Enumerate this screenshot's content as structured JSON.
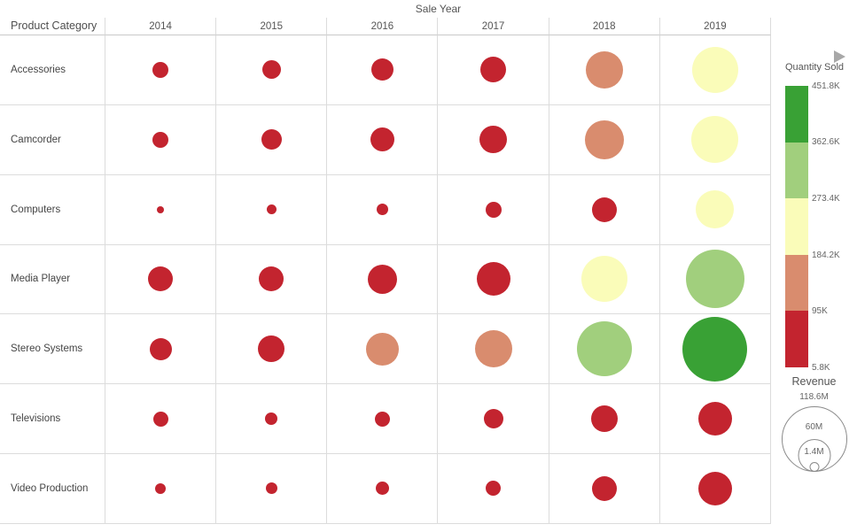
{
  "palette": {
    "red": "#c3242f",
    "salmon": "#d98c6e",
    "yellow": "#fafcb9",
    "light_green": "#a1cf7d",
    "green": "#39a135"
  },
  "color_bands": {
    "red": "5.8K-95K",
    "salmon": "95K-184.2K",
    "yellow": "184.2K-273.4K",
    "light_green": "273.4K-362.6K",
    "green": "362.6K-451.8K"
  },
  "chart_data": {
    "type": "bubble",
    "title": "Sale Year",
    "row_header": "Product Category",
    "size_encoding": "Revenue",
    "color_encoding": "Quantity Sold",
    "columns": [
      "2014",
      "2015",
      "2016",
      "2017",
      "2018",
      "2019"
    ],
    "rows": [
      {
        "category": "Accessories",
        "bubbles": [
          {
            "d": 18,
            "c": "red",
            "revenue_est_m": 7.2
          },
          {
            "d": 21,
            "c": "red",
            "revenue_est_m": 9.8
          },
          {
            "d": 25,
            "c": "red",
            "revenue_est_m": 13.9
          },
          {
            "d": 29,
            "c": "red",
            "revenue_est_m": 18.7
          },
          {
            "d": 42,
            "c": "salmon",
            "revenue_est_m": 39.3
          },
          {
            "d": 52,
            "c": "yellow",
            "revenue_est_m": 60.2
          }
        ]
      },
      {
        "category": "Camcorder",
        "bubbles": [
          {
            "d": 18,
            "c": "red",
            "revenue_est_m": 7.2
          },
          {
            "d": 23,
            "c": "red",
            "revenue_est_m": 11.8
          },
          {
            "d": 27,
            "c": "red",
            "revenue_est_m": 16.2
          },
          {
            "d": 31,
            "c": "red",
            "revenue_est_m": 21.4
          },
          {
            "d": 44,
            "c": "salmon",
            "revenue_est_m": 43.1
          },
          {
            "d": 53,
            "c": "yellow",
            "revenue_est_m": 62.5
          }
        ]
      },
      {
        "category": "Computers",
        "bubbles": [
          {
            "d": 8,
            "c": "red",
            "revenue_est_m": 1.4
          },
          {
            "d": 11,
            "c": "red",
            "revenue_est_m": 2.7
          },
          {
            "d": 13,
            "c": "red",
            "revenue_est_m": 3.8
          },
          {
            "d": 18,
            "c": "red",
            "revenue_est_m": 7.2
          },
          {
            "d": 28,
            "c": "red",
            "revenue_est_m": 17.4
          },
          {
            "d": 43,
            "c": "yellow",
            "revenue_est_m": 41.1
          }
        ]
      },
      {
        "category": "Media Player",
        "bubbles": [
          {
            "d": 28,
            "c": "red",
            "revenue_est_m": 17.4
          },
          {
            "d": 28,
            "c": "red",
            "revenue_est_m": 17.4
          },
          {
            "d": 33,
            "c": "red",
            "revenue_est_m": 24.2
          },
          {
            "d": 38,
            "c": "red",
            "revenue_est_m": 32.1
          },
          {
            "d": 52,
            "c": "yellow",
            "revenue_est_m": 60.2
          },
          {
            "d": 66,
            "c": "light_green",
            "revenue_est_m": 96.9
          }
        ]
      },
      {
        "category": "Stereo Systems",
        "bubbles": [
          {
            "d": 25,
            "c": "red",
            "revenue_est_m": 13.9
          },
          {
            "d": 30,
            "c": "red",
            "revenue_est_m": 20.0
          },
          {
            "d": 37,
            "c": "salmon",
            "revenue_est_m": 30.5
          },
          {
            "d": 42,
            "c": "salmon",
            "revenue_est_m": 39.3
          },
          {
            "d": 62,
            "c": "light_green",
            "revenue_est_m": 85.5
          },
          {
            "d": 73,
            "c": "green",
            "revenue_est_m": 118.6
          }
        ]
      },
      {
        "category": "Televisions",
        "bubbles": [
          {
            "d": 17,
            "c": "red",
            "revenue_est_m": 6.4
          },
          {
            "d": 14,
            "c": "red",
            "revenue_est_m": 4.4
          },
          {
            "d": 17,
            "c": "red",
            "revenue_est_m": 6.4
          },
          {
            "d": 22,
            "c": "red",
            "revenue_est_m": 10.8
          },
          {
            "d": 30,
            "c": "red",
            "revenue_est_m": 20.0
          },
          {
            "d": 38,
            "c": "red",
            "revenue_est_m": 32.1
          }
        ]
      },
      {
        "category": "Video Production",
        "bubbles": [
          {
            "d": 12,
            "c": "red",
            "revenue_est_m": 3.2
          },
          {
            "d": 13,
            "c": "red",
            "revenue_est_m": 3.8
          },
          {
            "d": 15,
            "c": "red",
            "revenue_est_m": 5.0
          },
          {
            "d": 17,
            "c": "red",
            "revenue_est_m": 6.4
          },
          {
            "d": 28,
            "c": "red",
            "revenue_est_m": 17.4
          },
          {
            "d": 38,
            "c": "red",
            "revenue_est_m": 32.1
          }
        ]
      }
    ]
  },
  "legend": {
    "color": {
      "title": "Quantity Sold",
      "labels": [
        "451.8K",
        "362.6K",
        "273.4K",
        "184.2K",
        "95K",
        "5.8K"
      ],
      "segments": [
        "green",
        "light_green",
        "yellow",
        "salmon",
        "red"
      ]
    },
    "size": {
      "title": "Revenue",
      "items": [
        {
          "label": "118.6M",
          "diameter": 74
        },
        {
          "label": "60M",
          "diameter": 37
        },
        {
          "label": "1.4M",
          "diameter": 11
        }
      ]
    }
  }
}
